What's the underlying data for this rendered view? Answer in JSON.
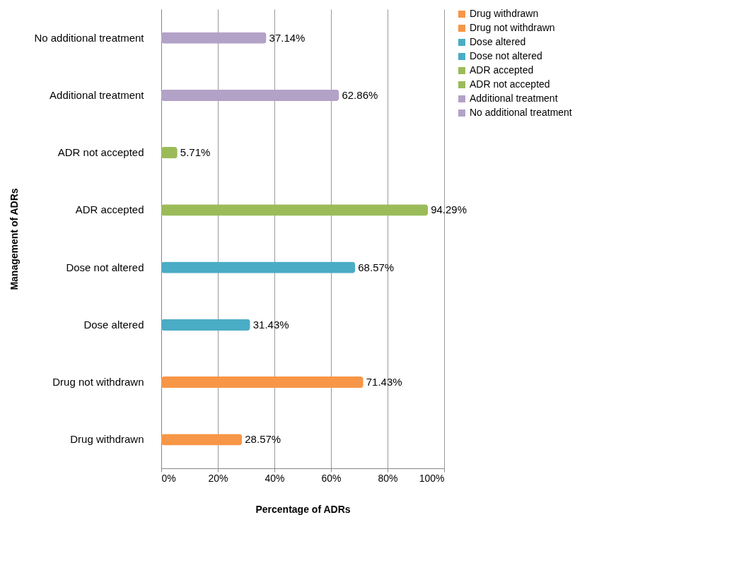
{
  "chart_data": {
    "type": "bar",
    "orientation": "horizontal",
    "xlabel": "Percentage of ADRs",
    "ylabel": "Management of ADRs",
    "categories": [
      "No additional treatment",
      "Additional treatment",
      "ADR not accepted",
      "ADR accepted",
      "Dose not altered",
      "Dose altered",
      "Drug not withdrawn",
      "Drug withdrawn"
    ],
    "series": [
      {
        "name": "Drug withdrawn",
        "color": "#f79646",
        "values": [
          null,
          null,
          null,
          null,
          null,
          null,
          null,
          28.57
        ],
        "value_labels": [
          null,
          null,
          null,
          null,
          null,
          null,
          null,
          "28.57%"
        ]
      },
      {
        "name": "Drug not withdrawn",
        "color": "#f79646",
        "values": [
          null,
          null,
          null,
          null,
          null,
          null,
          71.43,
          null
        ],
        "value_labels": [
          null,
          null,
          null,
          null,
          null,
          null,
          "71.43%",
          null
        ]
      },
      {
        "name": "Dose altered",
        "color": "#4bacc6",
        "values": [
          null,
          null,
          null,
          null,
          null,
          31.43,
          null,
          null
        ],
        "value_labels": [
          null,
          null,
          null,
          null,
          null,
          "31.43%",
          null,
          null
        ]
      },
      {
        "name": "Dose not altered",
        "color": "#4bacc6",
        "values": [
          null,
          null,
          null,
          null,
          68.57,
          null,
          null,
          null
        ],
        "value_labels": [
          null,
          null,
          null,
          null,
          "68.57%",
          null,
          null,
          null
        ]
      },
      {
        "name": "ADR accepted",
        "color": "#9bbb59",
        "values": [
          null,
          null,
          null,
          94.29,
          null,
          null,
          null,
          null
        ],
        "value_labels": [
          null,
          null,
          null,
          "94.29%",
          null,
          null,
          null,
          null
        ]
      },
      {
        "name": "ADR not accepted",
        "color": "#9bbb59",
        "values": [
          null,
          null,
          5.71,
          null,
          null,
          null,
          null,
          null
        ],
        "value_labels": [
          null,
          null,
          "5.71%",
          null,
          null,
          null,
          null,
          null
        ]
      },
      {
        "name": "Additional treatment",
        "color": "#b3a2c7",
        "values": [
          null,
          62.86,
          null,
          null,
          null,
          null,
          null,
          null
        ],
        "value_labels": [
          null,
          "62.86%",
          null,
          null,
          null,
          null,
          null,
          null
        ]
      },
      {
        "name": "No additional treatment",
        "color": "#b3a2c7",
        "values": [
          37.14,
          null,
          null,
          null,
          null,
          null,
          null,
          null
        ],
        "value_labels": [
          "37.14%",
          null,
          null,
          null,
          null,
          null,
          null,
          null
        ]
      }
    ],
    "xlim": [
      0,
      100
    ],
    "xticks": [
      {
        "value": 0,
        "label": "0%"
      },
      {
        "value": 20,
        "label": "20%"
      },
      {
        "value": 40,
        "label": "40%"
      },
      {
        "value": 60,
        "label": "60%"
      },
      {
        "value": 80,
        "label": "80%"
      },
      {
        "value": 100,
        "label": "100%"
      }
    ],
    "grid": "x",
    "legend": "right"
  }
}
